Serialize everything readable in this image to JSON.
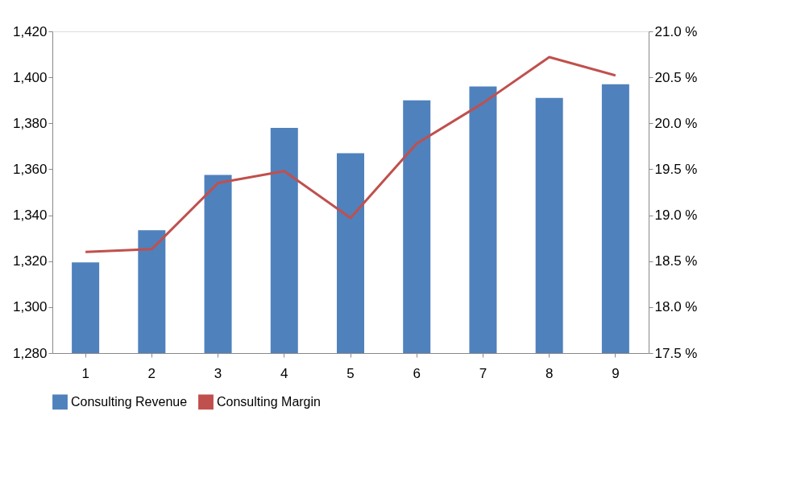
{
  "chart_data": {
    "type": "bar",
    "categories": [
      "1",
      "2",
      "3",
      "4",
      "5",
      "6",
      "7",
      "8",
      "9"
    ],
    "series": [
      {
        "name": "Consulting Revenue",
        "color": "#4f81bd",
        "values": [
          1319.5,
          1333.5,
          1357.5,
          1378,
          1367,
          1390,
          1396,
          1391,
          1397
        ]
      },
      {
        "name": "Consulting Margin",
        "type": "line",
        "axis": "y2",
        "color": "#c0504d",
        "values": [
          18.6,
          18.63,
          19.35,
          19.48,
          18.97,
          19.78,
          20.22,
          20.72,
          20.52
        ]
      }
    ],
    "ylim": [
      1280,
      1420
    ],
    "yticks": [
      {
        "value": 1280,
        "label": "1,280"
      },
      {
        "value": 1300,
        "label": "1,300"
      },
      {
        "value": 1320,
        "label": "1,320"
      },
      {
        "value": 1340,
        "label": "1,340"
      },
      {
        "value": 1360,
        "label": "1,360"
      },
      {
        "value": 1380,
        "label": "1,380"
      },
      {
        "value": 1400,
        "label": "1,400"
      },
      {
        "value": 1420,
        "label": "1,420"
      }
    ],
    "y2lim": [
      17.5,
      21.0
    ],
    "y2ticks": [
      {
        "value": 17.5,
        "label": "17.5 %"
      },
      {
        "value": 18.0,
        "label": "18.0 %"
      },
      {
        "value": 18.5,
        "label": "18.5 %"
      },
      {
        "value": 19.0,
        "label": "19.0 %"
      },
      {
        "value": 19.5,
        "label": "19.5 %"
      },
      {
        "value": 20.0,
        "label": "20.0 %"
      },
      {
        "value": 20.5,
        "label": "20.5 %"
      },
      {
        "value": 21.0,
        "label": "21.0 %"
      }
    ],
    "legend": "bottom"
  }
}
